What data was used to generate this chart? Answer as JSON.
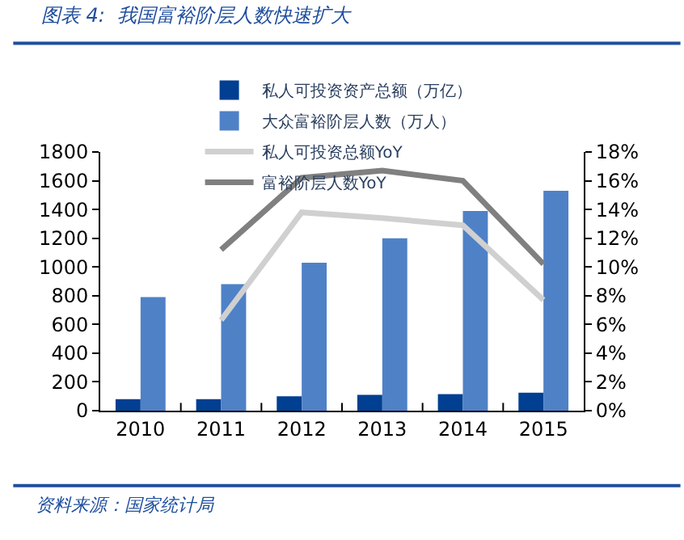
{
  "chart_data": {
    "type": "bar",
    "title": "图表 4:  我国富裕阶层人数快速扩大",
    "categories": [
      "2010",
      "2011",
      "2012",
      "2013",
      "2014",
      "2015"
    ],
    "series": [
      {
        "name": "私人可投资资产总额（万亿）",
        "color": "#003f91",
        "values": [
          80,
          80,
          100,
          110,
          115,
          125
        ]
      },
      {
        "name": "大众富裕阶层人数（万人）",
        "color": "#4f81c7",
        "values": [
          790,
          880,
          1030,
          1200,
          1390,
          1530
        ]
      },
      {
        "name": "私人可投资总额YoY",
        "type": "line",
        "axis": "y2",
        "color": "#d0d0d0",
        "values": [
          null,
          6.3,
          13.8,
          13.4,
          12.9,
          7.7
        ]
      },
      {
        "name": "富裕阶层人数YoY",
        "type": "line",
        "axis": "y2",
        "color": "#808080",
        "values": [
          null,
          11.2,
          16.2,
          16.7,
          16.0,
          10.2
        ]
      }
    ],
    "ylim": [
      0,
      1800
    ],
    "yticks": [
      0,
      200,
      400,
      600,
      800,
      1000,
      1200,
      1400,
      1600,
      1800
    ],
    "y2lim": [
      0,
      18
    ],
    "y2ticks": [
      {
        "value": 0,
        "label": "0%"
      },
      {
        "value": 2,
        "label": "2%"
      },
      {
        "value": 4,
        "label": "4%"
      },
      {
        "value": 6,
        "label": "6%"
      },
      {
        "value": 8,
        "label": "8%"
      },
      {
        "value": 10,
        "label": "10%"
      },
      {
        "value": 12,
        "label": "12%"
      },
      {
        "value": 14,
        "label": "14%"
      },
      {
        "value": 16,
        "label": "16%"
      },
      {
        "value": 18,
        "label": "18%"
      }
    ],
    "legend": "top",
    "marker": "none",
    "annotations": [
      "资料来源：国家统计局"
    ]
  }
}
